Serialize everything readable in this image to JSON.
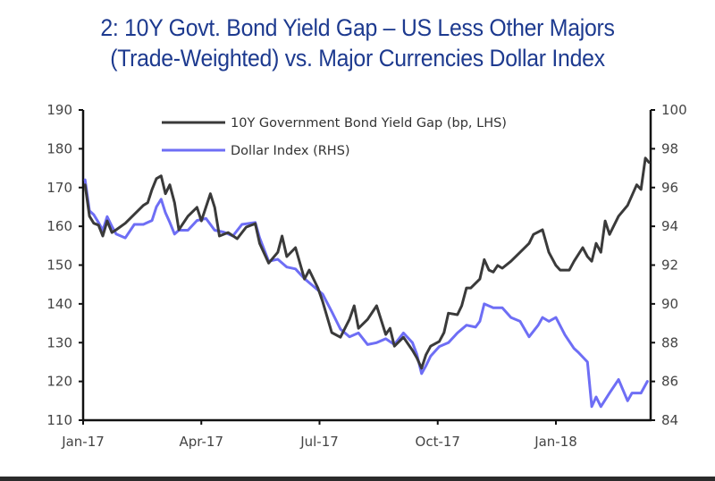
{
  "chart_data": {
    "type": "line",
    "title": "2: 10Y Govt. Bond Yield Gap – US Less Other Majors (Trade-Weighted) vs. Major Currencies Dollar Index",
    "title_lines": [
      "2: 10Y Govt. Bond Yield Gap – US Less Other Majors",
      "(Trade-Weighted) vs. Major Currencies Dollar Index"
    ],
    "xlabel": "",
    "x_unit": "months since Jan-2017",
    "x_range": [
      0,
      12
    ],
    "x_ticks": [
      {
        "label": "Jan-17",
        "x": 0
      },
      {
        "label": "Apr-17",
        "x": 3
      },
      {
        "label": "Jul-17",
        "x": 6
      },
      {
        "label": "Oct-17",
        "x": 9
      },
      {
        "label": "Jan-18",
        "x": 12
      }
    ],
    "y_left": {
      "label": "bp",
      "ylim": [
        110,
        190
      ],
      "ticks": [
        110,
        120,
        130,
        140,
        150,
        160,
        170,
        180,
        190
      ]
    },
    "y_right": {
      "label": "index",
      "ylim": [
        84,
        100
      ],
      "ticks": [
        84,
        86,
        88,
        90,
        92,
        94,
        96,
        98,
        100
      ]
    },
    "grid": false,
    "legend": {
      "position": "top-center"
    },
    "series": [
      {
        "name": "10Y Government Bond Yield Gap (bp, LHS)",
        "axis": "left",
        "color": "#3a3a3a",
        "points": [
          [
            0.05,
            170.7
          ],
          [
            0.16,
            162.6
          ],
          [
            0.27,
            160.8
          ],
          [
            0.39,
            160.3
          ],
          [
            0.5,
            157.5
          ],
          [
            0.61,
            161.4
          ],
          [
            0.73,
            158.4
          ],
          [
            0.84,
            159.1
          ],
          [
            1.07,
            160.8
          ],
          [
            1.3,
            163.1
          ],
          [
            1.53,
            165.4
          ],
          [
            1.64,
            166.1
          ],
          [
            1.75,
            169.5
          ],
          [
            1.86,
            172.3
          ],
          [
            1.98,
            173.0
          ],
          [
            2.09,
            168.4
          ],
          [
            2.2,
            170.7
          ],
          [
            2.32,
            166.1
          ],
          [
            2.43,
            159.1
          ],
          [
            2.66,
            162.6
          ],
          [
            2.89,
            164.9
          ],
          [
            3.0,
            161.4
          ],
          [
            3.23,
            168.4
          ],
          [
            3.34,
            164.9
          ],
          [
            3.46,
            157.5
          ],
          [
            3.68,
            158.4
          ],
          [
            3.91,
            156.8
          ],
          [
            4.14,
            159.8
          ],
          [
            4.37,
            160.7
          ],
          [
            4.48,
            155.6
          ],
          [
            4.71,
            150.5
          ],
          [
            4.94,
            153.3
          ],
          [
            5.05,
            157.5
          ],
          [
            5.17,
            152.2
          ],
          [
            5.39,
            154.5
          ],
          [
            5.62,
            146.4
          ],
          [
            5.74,
            148.7
          ],
          [
            5.96,
            144.1
          ],
          [
            6.08,
            140.6
          ],
          [
            6.31,
            132.6
          ],
          [
            6.53,
            131.4
          ],
          [
            6.76,
            136.0
          ],
          [
            6.88,
            139.5
          ],
          [
            6.99,
            133.7
          ],
          [
            7.22,
            136.0
          ],
          [
            7.45,
            139.5
          ],
          [
            7.68,
            132.1
          ],
          [
            7.79,
            133.7
          ],
          [
            7.9,
            129.1
          ],
          [
            8.13,
            131.4
          ],
          [
            8.36,
            128.0
          ],
          [
            8.47,
            126.1
          ],
          [
            8.59,
            123.4
          ],
          [
            8.7,
            126.8
          ],
          [
            8.82,
            129.1
          ],
          [
            9.04,
            130.3
          ],
          [
            9.16,
            132.6
          ],
          [
            9.27,
            137.6
          ],
          [
            9.5,
            137.2
          ],
          [
            9.61,
            139.5
          ],
          [
            9.73,
            144.1
          ],
          [
            9.84,
            144.1
          ],
          [
            10.07,
            146.4
          ],
          [
            10.18,
            151.4
          ],
          [
            10.3,
            148.7
          ],
          [
            10.41,
            148.2
          ],
          [
            10.52,
            149.9
          ],
          [
            10.64,
            149.2
          ],
          [
            10.86,
            151.0
          ],
          [
            11.09,
            153.3
          ],
          [
            11.32,
            155.6
          ],
          [
            11.43,
            157.9
          ],
          [
            11.66,
            159.1
          ],
          [
            11.82,
            153.3
          ],
          [
            12.0,
            149.9
          ],
          [
            12.11,
            148.7
          ],
          [
            12.34,
            148.7
          ],
          [
            12.46,
            151.0
          ],
          [
            12.68,
            154.5
          ],
          [
            12.8,
            152.2
          ],
          [
            12.91,
            151.0
          ],
          [
            13.02,
            155.6
          ],
          [
            13.14,
            153.3
          ],
          [
            13.25,
            161.4
          ],
          [
            13.36,
            157.9
          ],
          [
            13.59,
            162.6
          ],
          [
            13.82,
            165.4
          ],
          [
            14.05,
            170.7
          ],
          [
            14.16,
            169.5
          ],
          [
            14.27,
            177.6
          ],
          [
            14.36,
            176.5
          ]
        ]
      },
      {
        "name": "Dollar Index (RHS)",
        "axis": "right",
        "color": "#6e6ef5",
        "points": [
          [
            0.05,
            96.4
          ],
          [
            0.16,
            94.8
          ],
          [
            0.27,
            94.6
          ],
          [
            0.39,
            94.2
          ],
          [
            0.5,
            93.8
          ],
          [
            0.61,
            94.5
          ],
          [
            0.73,
            94.0
          ],
          [
            0.84,
            93.6
          ],
          [
            1.07,
            93.4
          ],
          [
            1.3,
            94.1
          ],
          [
            1.53,
            94.1
          ],
          [
            1.64,
            94.2
          ],
          [
            1.75,
            94.3
          ],
          [
            1.86,
            95.0
          ],
          [
            1.98,
            95.4
          ],
          [
            2.09,
            94.7
          ],
          [
            2.2,
            94.2
          ],
          [
            2.32,
            93.6
          ],
          [
            2.43,
            93.8
          ],
          [
            2.66,
            93.8
          ],
          [
            2.89,
            94.3
          ],
          [
            3.12,
            94.4
          ],
          [
            3.34,
            93.8
          ],
          [
            3.57,
            93.7
          ],
          [
            3.8,
            93.5
          ],
          [
            4.03,
            94.1
          ],
          [
            4.37,
            94.2
          ],
          [
            4.48,
            93.4
          ],
          [
            4.71,
            92.2
          ],
          [
            4.94,
            92.3
          ],
          [
            5.17,
            91.9
          ],
          [
            5.39,
            91.8
          ],
          [
            5.62,
            91.3
          ],
          [
            5.85,
            90.9
          ],
          [
            6.08,
            90.5
          ],
          [
            6.31,
            89.6
          ],
          [
            6.53,
            88.7
          ],
          [
            6.76,
            88.3
          ],
          [
            6.99,
            88.5
          ],
          [
            7.22,
            87.9
          ],
          [
            7.45,
            88.0
          ],
          [
            7.68,
            88.2
          ],
          [
            7.9,
            87.9
          ],
          [
            8.13,
            88.5
          ],
          [
            8.36,
            88.0
          ],
          [
            8.47,
            87.4
          ],
          [
            8.59,
            86.4
          ],
          [
            8.7,
            86.8
          ],
          [
            8.82,
            87.3
          ],
          [
            9.04,
            87.8
          ],
          [
            9.27,
            88.0
          ],
          [
            9.5,
            88.5
          ],
          [
            9.73,
            88.9
          ],
          [
            9.96,
            88.8
          ],
          [
            10.07,
            89.1
          ],
          [
            10.18,
            90.0
          ],
          [
            10.41,
            89.8
          ],
          [
            10.64,
            89.8
          ],
          [
            10.86,
            89.3
          ],
          [
            11.09,
            89.1
          ],
          [
            11.32,
            88.3
          ],
          [
            11.55,
            88.9
          ],
          [
            11.66,
            89.3
          ],
          [
            11.82,
            89.1
          ],
          [
            12.0,
            89.3
          ],
          [
            12.23,
            88.4
          ],
          [
            12.46,
            87.7
          ],
          [
            12.57,
            87.5
          ],
          [
            12.8,
            87.0
          ],
          [
            12.91,
            84.7
          ],
          [
            13.02,
            85.2
          ],
          [
            13.14,
            84.7
          ],
          [
            13.36,
            85.4
          ],
          [
            13.59,
            86.1
          ],
          [
            13.82,
            85.0
          ],
          [
            13.93,
            85.4
          ],
          [
            14.16,
            85.4
          ],
          [
            14.32,
            86.0
          ]
        ]
      }
    ]
  }
}
